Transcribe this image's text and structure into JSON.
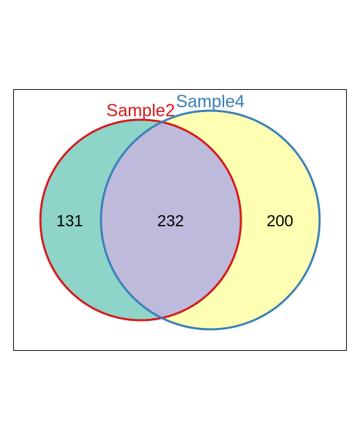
{
  "sets": [
    {
      "name": "Sample2",
      "color": "#d7191c",
      "fill": "#8ed4c8"
    },
    {
      "name": "Sample4",
      "color": "#3a7fb8",
      "fill": "#ffffb4"
    }
  ],
  "overlap_fill": "#bdbadb",
  "regions": {
    "sample2_only": "131",
    "both": "232",
    "sample4_only": "200"
  }
}
